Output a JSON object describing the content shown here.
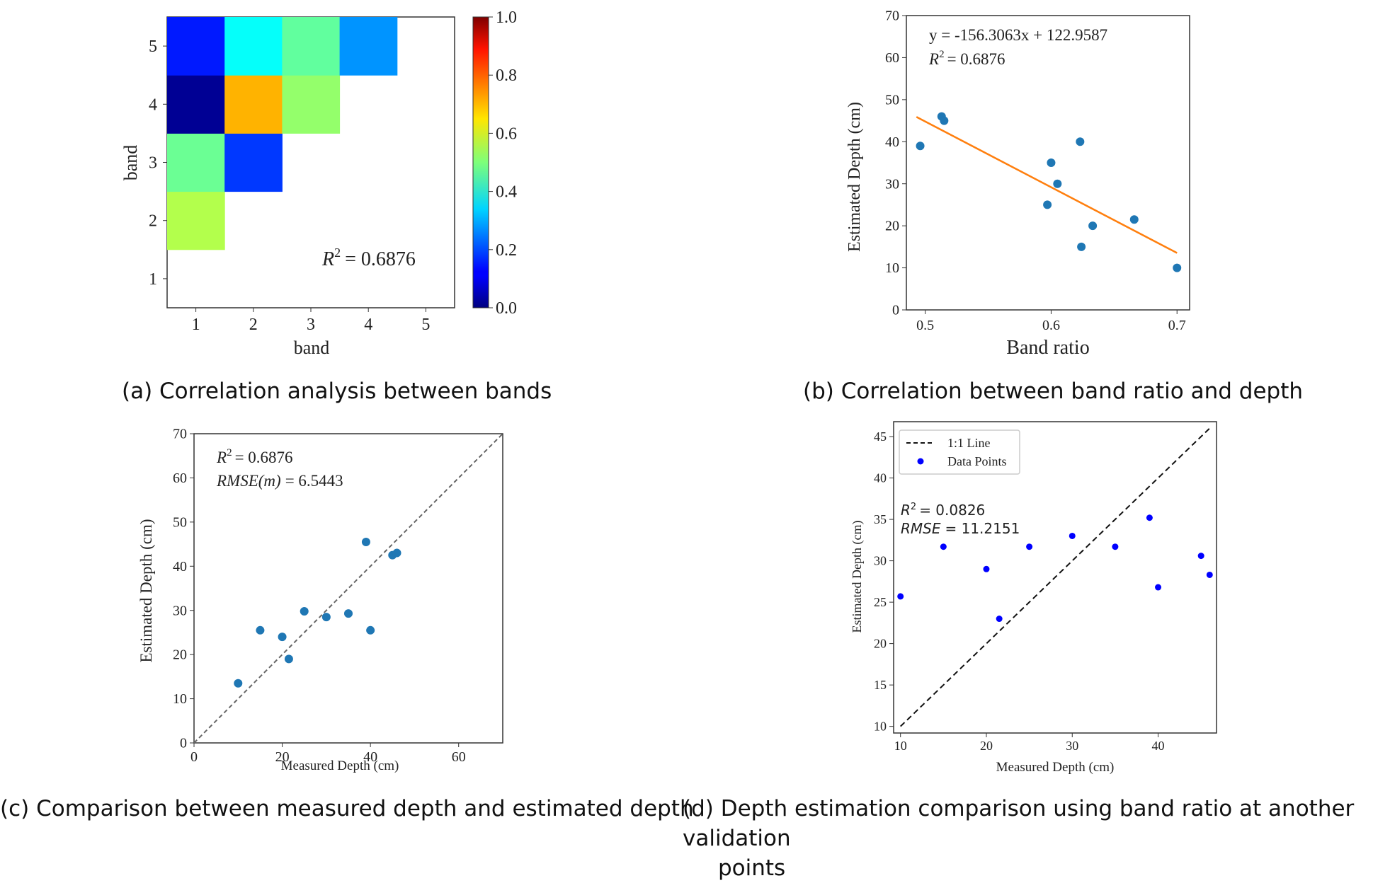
{
  "captions": {
    "a": "(a) Correlation analysis between bands",
    "b": "(b) Correlation between band ratio and depth",
    "c": "(c) Comparison between measured depth and estimated depth",
    "d_line1": "(d) Depth estimation comparison using band ratio at another validation",
    "d_line2": "points"
  },
  "chart_data": [
    {
      "id": "a",
      "type": "heatmap",
      "xlabel": "band",
      "ylabel": "band",
      "x_ticks": [
        "1",
        "2",
        "3",
        "4",
        "5"
      ],
      "y_ticks": [
        "1",
        "2",
        "3",
        "4",
        "5"
      ],
      "colorbar": {
        "min": 0.0,
        "max": 1.0,
        "ticks": [
          "0.0",
          "0.2",
          "0.4",
          "0.6",
          "0.8",
          "1.0"
        ],
        "colormap": "jet"
      },
      "cells": [
        {
          "x": 1,
          "y": 2,
          "value": 0.55
        },
        {
          "x": 1,
          "y": 3,
          "value": 0.48
        },
        {
          "x": 2,
          "y": 3,
          "value": 0.18
        },
        {
          "x": 1,
          "y": 4,
          "value": 0.02
        },
        {
          "x": 2,
          "y": 4,
          "value": 0.7
        },
        {
          "x": 3,
          "y": 4,
          "value": 0.52
        },
        {
          "x": 1,
          "y": 5,
          "value": 0.15
        },
        {
          "x": 2,
          "y": 5,
          "value": 0.38
        },
        {
          "x": 3,
          "y": 5,
          "value": 0.47
        },
        {
          "x": 4,
          "y": 5,
          "value": 0.27
        }
      ],
      "annotation": {
        "r2_label": "R",
        "r2_value": "= 0.6876"
      }
    },
    {
      "id": "b",
      "type": "scatter",
      "xlabel": "Band ratio",
      "ylabel": "Estimated Depth (cm)",
      "xlim": [
        0.485,
        0.71
      ],
      "ylim": [
        0,
        70
      ],
      "x_ticks": [
        0.5,
        0.6,
        0.7
      ],
      "x_tick_labels": [
        "0.5",
        "0.6",
        "0.7"
      ],
      "y_ticks": [
        0,
        10,
        20,
        30,
        40,
        50,
        60,
        70
      ],
      "points": [
        {
          "x": 0.496,
          "y": 39
        },
        {
          "x": 0.513,
          "y": 46
        },
        {
          "x": 0.515,
          "y": 45
        },
        {
          "x": 0.597,
          "y": 25
        },
        {
          "x": 0.6,
          "y": 35
        },
        {
          "x": 0.605,
          "y": 30
        },
        {
          "x": 0.623,
          "y": 40
        },
        {
          "x": 0.624,
          "y": 15
        },
        {
          "x": 0.633,
          "y": 20
        },
        {
          "x": 0.666,
          "y": 21.5
        },
        {
          "x": 0.7,
          "y": 10
        }
      ],
      "fit_line": {
        "slope": -156.3063,
        "intercept": 122.9587,
        "x_range": [
          0.493,
          0.7
        ]
      },
      "colors": {
        "points": "#1f77b4",
        "fit": "#ff7f0e"
      },
      "annotation": {
        "equation": "y = -156.3063x + 122.9587",
        "r2_label": "R",
        "r2_value": "= 0.6876"
      }
    },
    {
      "id": "c",
      "type": "scatter",
      "xlabel": "Measured Depth (cm)",
      "ylabel": "Estimated Depth (cm)",
      "xlim": [
        0,
        70
      ],
      "ylim": [
        0,
        70
      ],
      "x_ticks": [
        0,
        20,
        40,
        60
      ],
      "y_ticks": [
        0,
        10,
        20,
        30,
        40,
        50,
        60,
        70
      ],
      "points": [
        {
          "x": 10,
          "y": 13.5
        },
        {
          "x": 15,
          "y": 25.5
        },
        {
          "x": 20,
          "y": 24
        },
        {
          "x": 21.5,
          "y": 19
        },
        {
          "x": 25,
          "y": 29.8
        },
        {
          "x": 30,
          "y": 28.5
        },
        {
          "x": 35,
          "y": 29.3
        },
        {
          "x": 39,
          "y": 45.5
        },
        {
          "x": 40,
          "y": 25.5
        },
        {
          "x": 45,
          "y": 42.5
        },
        {
          "x": 46,
          "y": 43
        }
      ],
      "colors": {
        "points": "#1f77b4"
      },
      "annotation": {
        "r2_label": "R",
        "r2_value": "= 0.6876",
        "rmse_label": "RMSE(m)",
        "rmse_value": "= 6.5443"
      }
    },
    {
      "id": "d",
      "type": "scatter",
      "xlabel": "Measured Depth (cm)",
      "ylabel": "Estimated Depth (cm)",
      "xlim": [
        9.2,
        46.8
      ],
      "ylim": [
        9.2,
        46.8
      ],
      "x_ticks": [
        10,
        20,
        30,
        40
      ],
      "y_ticks": [
        10,
        15,
        20,
        25,
        30,
        35,
        40,
        45
      ],
      "points": [
        {
          "x": 10,
          "y": 25.7
        },
        {
          "x": 15,
          "y": 31.7
        },
        {
          "x": 20,
          "y": 29
        },
        {
          "x": 21.5,
          "y": 23
        },
        {
          "x": 25,
          "y": 31.7
        },
        {
          "x": 30,
          "y": 33
        },
        {
          "x": 35,
          "y": 31.7
        },
        {
          "x": 39,
          "y": 35.2
        },
        {
          "x": 40,
          "y": 26.8
        },
        {
          "x": 45,
          "y": 30.6
        },
        {
          "x": 46,
          "y": 28.3
        }
      ],
      "colors": {
        "points": "#0000ff",
        "line": "#000000"
      },
      "legend": {
        "placement": "top-left",
        "line_label": "1:1 Line",
        "points_label": "Data Points"
      },
      "annotation": {
        "r2_label": "R",
        "r2_value": "= 0.0826",
        "rmse_label": "RMSE",
        "rmse_value": "= 11.2151"
      }
    }
  ]
}
